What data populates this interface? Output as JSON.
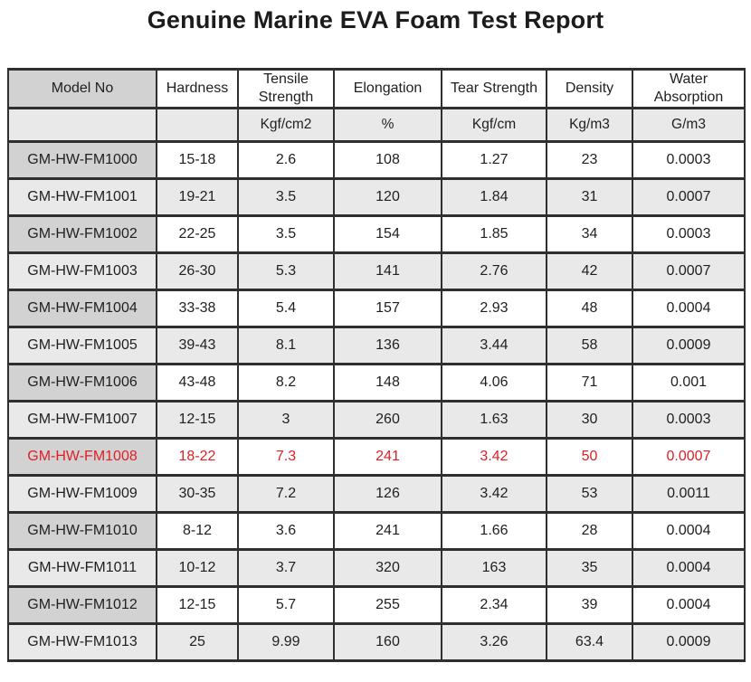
{
  "title": "Genuine Marine EVA Foam Test Report",
  "colors": {
    "highlight_red": "#e01f26",
    "model_header_gray": "#d2d2d2",
    "alt_row_gray": "#e9e9e9",
    "border_dark": "#2f2f2f"
  },
  "table": {
    "columns": [
      {
        "key": "model",
        "label": "Model No",
        "unit": ""
      },
      {
        "key": "hardness",
        "label": "Hardness",
        "unit": ""
      },
      {
        "key": "tensile",
        "label": "Tensile Strength",
        "unit": "Kgf/cm2"
      },
      {
        "key": "elongation",
        "label": "Elongation",
        "unit": "%"
      },
      {
        "key": "tear",
        "label": "Tear Strength",
        "unit": "Kgf/cm"
      },
      {
        "key": "density",
        "label": "Density",
        "unit": "Kg/m3"
      },
      {
        "key": "water",
        "label": "Water Absorption",
        "unit": "G/m3"
      }
    ],
    "rows": [
      {
        "model": "GM-HW-FM1000",
        "hardness": "15-18",
        "tensile": "2.6",
        "elongation": "108",
        "tear": "1.27",
        "density": "23",
        "water": "0.0003",
        "highlight": false
      },
      {
        "model": "GM-HW-FM1001",
        "hardness": "19-21",
        "tensile": "3.5",
        "elongation": "120",
        "tear": "1.84",
        "density": "31",
        "water": "0.0007",
        "highlight": false
      },
      {
        "model": "GM-HW-FM1002",
        "hardness": "22-25",
        "tensile": "3.5",
        "elongation": "154",
        "tear": "1.85",
        "density": "34",
        "water": "0.0003",
        "highlight": false
      },
      {
        "model": "GM-HW-FM1003",
        "hardness": "26-30",
        "tensile": "5.3",
        "elongation": "141",
        "tear": "2.76",
        "density": "42",
        "water": "0.0007",
        "highlight": false
      },
      {
        "model": "GM-HW-FM1004",
        "hardness": "33-38",
        "tensile": "5.4",
        "elongation": "157",
        "tear": "2.93",
        "density": "48",
        "water": "0.0004",
        "highlight": false
      },
      {
        "model": "GM-HW-FM1005",
        "hardness": "39-43",
        "tensile": "8.1",
        "elongation": "136",
        "tear": "3.44",
        "density": "58",
        "water": "0.0009",
        "highlight": false
      },
      {
        "model": "GM-HW-FM1006",
        "hardness": "43-48",
        "tensile": "8.2",
        "elongation": "148",
        "tear": "4.06",
        "density": "71",
        "water": "0.001",
        "highlight": false
      },
      {
        "model": "GM-HW-FM1007",
        "hardness": "12-15",
        "tensile": "3",
        "elongation": "260",
        "tear": "1.63",
        "density": "30",
        "water": "0.0003",
        "highlight": false
      },
      {
        "model": "GM-HW-FM1008",
        "hardness": "18-22",
        "tensile": "7.3",
        "elongation": "241",
        "tear": "3.42",
        "density": "50",
        "water": "0.0007",
        "highlight": true
      },
      {
        "model": "GM-HW-FM1009",
        "hardness": "30-35",
        "tensile": "7.2",
        "elongation": "126",
        "tear": "3.42",
        "density": "53",
        "water": "0.0011",
        "highlight": false
      },
      {
        "model": "GM-HW-FM1010",
        "hardness": "8-12",
        "tensile": "3.6",
        "elongation": "241",
        "tear": "1.66",
        "density": "28",
        "water": "0.0004",
        "highlight": false
      },
      {
        "model": "GM-HW-FM1011",
        "hardness": "10-12",
        "tensile": "3.7",
        "elongation": "320",
        "tear": "163",
        "density": "35",
        "water": "0.0004",
        "highlight": false
      },
      {
        "model": "GM-HW-FM1012",
        "hardness": "12-15",
        "tensile": "5.7",
        "elongation": "255",
        "tear": "2.34",
        "density": "39",
        "water": "0.0004",
        "highlight": false
      },
      {
        "model": "GM-HW-FM1013",
        "hardness": "25",
        "tensile": "9.99",
        "elongation": "160",
        "tear": "3.26",
        "density": "63.4",
        "water": "0.0009",
        "highlight": false
      }
    ]
  }
}
